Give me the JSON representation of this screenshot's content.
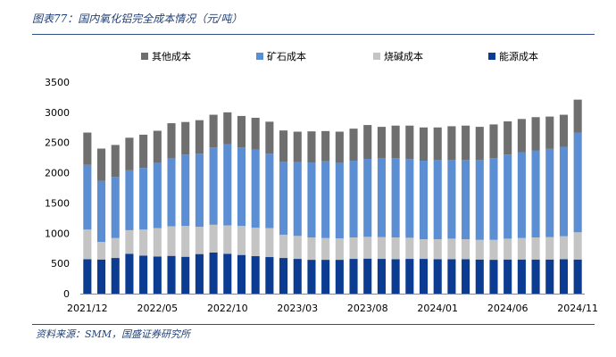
{
  "header": {
    "title": "图表77：国内氧化铝完全成本情况（元/吨）"
  },
  "footer": {
    "source": "资料来源：SMM，国盛证券研究所"
  },
  "colors": {
    "其他成本": "#6f6f6f",
    "矿石成本": "#5b8ed3",
    "烧碱成本": "#c4c4c4",
    "能源成本": "#0b3c91"
  },
  "chart_data": {
    "type": "bar",
    "stacked": true,
    "categories": [
      "2021/12",
      "2022/01",
      "2022/02",
      "2022/03",
      "2022/04",
      "2022/05",
      "2022/06",
      "2022/07",
      "2022/08",
      "2022/09",
      "2022/10",
      "2022/11",
      "2022/12",
      "2023/01",
      "2023/02",
      "2023/03",
      "2023/04",
      "2023/05",
      "2023/06",
      "2023/07",
      "2023/08",
      "2023/09",
      "2023/10",
      "2023/11",
      "2023/12",
      "2024/01",
      "2024/02",
      "2024/03",
      "2024/04",
      "2024/05",
      "2024/06",
      "2024/07",
      "2024/08",
      "2024/09",
      "2024/10",
      "2024/11"
    ],
    "x_tick_labels": [
      "2021/12",
      "2022/05",
      "2022/10",
      "2023/03",
      "2023/08",
      "2024/01",
      "2024/06",
      "2024/11"
    ],
    "series": [
      {
        "name": "能源成本",
        "values": [
          570,
          565,
          590,
          660,
          630,
          615,
          625,
          610,
          655,
          680,
          660,
          640,
          620,
          605,
          590,
          575,
          560,
          560,
          560,
          575,
          580,
          575,
          570,
          575,
          575,
          570,
          570,
          570,
          565,
          560,
          565,
          565,
          565,
          565,
          570,
          565
        ]
      },
      {
        "name": "烧碱成本",
        "values": [
          490,
          290,
          330,
          390,
          430,
          470,
          490,
          510,
          450,
          460,
          470,
          480,
          470,
          480,
          385,
          380,
          370,
          360,
          355,
          355,
          360,
          360,
          360,
          350,
          325,
          330,
          340,
          330,
          325,
          330,
          345,
          355,
          365,
          370,
          380,
          450
        ]
      },
      {
        "name": "矿石成本",
        "values": [
          1070,
          1010,
          1010,
          990,
          1020,
          1080,
          1130,
          1180,
          1210,
          1280,
          1340,
          1300,
          1290,
          1230,
          1210,
          1220,
          1240,
          1270,
          1250,
          1270,
          1290,
          1310,
          1310,
          1300,
          1300,
          1310,
          1300,
          1310,
          1320,
          1350,
          1390,
          1420,
          1440,
          1460,
          1480,
          1650
        ]
      },
      {
        "name": "其他成本",
        "values": [
          535,
          535,
          530,
          540,
          550,
          530,
          575,
          540,
          555,
          540,
          530,
          520,
          530,
          530,
          515,
          505,
          515,
          500,
          515,
          530,
          560,
          515,
          540,
          555,
          550,
          540,
          560,
          570,
          550,
          560,
          550,
          550,
          550,
          535,
          530,
          545
        ]
      }
    ],
    "legend_order": [
      "其他成本",
      "矿石成本",
      "烧碱成本",
      "能源成本"
    ],
    "y_ticks": [
      0,
      500,
      1000,
      1500,
      2000,
      2500,
      3000,
      3500
    ],
    "ylim": [
      0,
      3500
    ],
    "xlabel": "",
    "ylabel": "",
    "grid": false,
    "legend_position": "top"
  }
}
